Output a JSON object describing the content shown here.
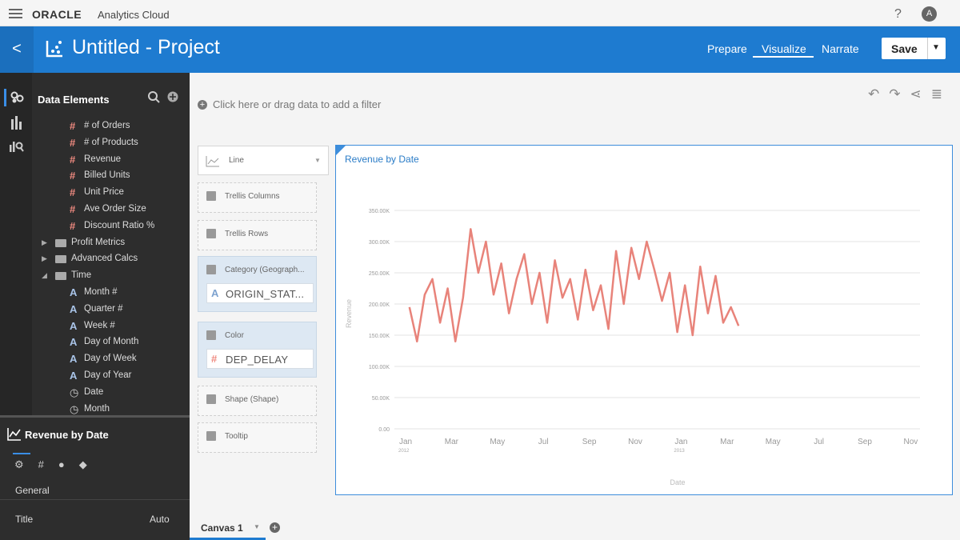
{
  "app_bar": {
    "brand": "ORACLE",
    "product": "Analytics Cloud",
    "help": "?",
    "avatar": "A"
  },
  "header": {
    "back": "<",
    "title": "Untitled - Project",
    "tabs": [
      "Prepare",
      "Visualize",
      "Narrate"
    ],
    "active_tab": 1,
    "save": "Save"
  },
  "sidebar": {
    "title": "Data Elements",
    "items": [
      {
        "label": "# of Orders",
        "kind": "measure",
        "level": 2
      },
      {
        "label": "# of Products",
        "kind": "measure",
        "level": 2
      },
      {
        "label": "Revenue",
        "kind": "measure",
        "level": 2
      },
      {
        "label": "Billed Units",
        "kind": "measure",
        "level": 2
      },
      {
        "label": "Unit Price",
        "kind": "measure",
        "level": 2
      },
      {
        "label": "Ave Order Size",
        "kind": "measure",
        "level": 2
      },
      {
        "label": "Discount Ratio %",
        "kind": "measure",
        "level": 2
      },
      {
        "label": "Profit Metrics",
        "kind": "folder",
        "level": 1,
        "expanded": false
      },
      {
        "label": "Advanced Calcs",
        "kind": "folder",
        "level": 1,
        "expanded": false
      },
      {
        "label": "Time",
        "kind": "folder",
        "level": 1,
        "expanded": true
      },
      {
        "label": "Month #",
        "kind": "attribute",
        "level": 2
      },
      {
        "label": "Quarter #",
        "kind": "attribute",
        "level": 2
      },
      {
        "label": "Week #",
        "kind": "attribute",
        "level": 2
      },
      {
        "label": "Day of Month",
        "kind": "attribute",
        "level": 2
      },
      {
        "label": "Day of Week",
        "kind": "attribute",
        "level": 2
      },
      {
        "label": "Day of Year",
        "kind": "attribute",
        "level": 2
      },
      {
        "label": "Date",
        "kind": "date",
        "level": 2
      },
      {
        "label": "Month",
        "kind": "date",
        "level": 2
      }
    ]
  },
  "properties": {
    "title": "Revenue by Date",
    "section": "General",
    "rows": [
      [
        "Title",
        "Auto"
      ]
    ]
  },
  "filter_bar": {
    "hint": "Click here or drag data to add a filter"
  },
  "grammar": {
    "viz_type": "Line",
    "slots": [
      {
        "label": "Trellis Columns"
      },
      {
        "label": "Trellis Rows"
      },
      {
        "label": "Category (Geograph...",
        "value": "ORIGIN_STAT...",
        "value_kind": "attribute"
      },
      {
        "label": "Color",
        "value": "DEP_DELAY",
        "value_kind": "measure"
      },
      {
        "label": "Shape (Shape)"
      },
      {
        "label": "Tooltip"
      }
    ]
  },
  "canvas_tabs": [
    "Canvas 1"
  ],
  "chart_data": {
    "type": "line",
    "title": "Revenue by Date",
    "x_label": "Date",
    "y_label": "Revenue",
    "x": [
      "2012-01",
      "2012-01",
      "2012-01",
      "2012-02",
      "2012-02",
      "2012-02",
      "2012-03",
      "2012-03",
      "2012-03",
      "2012-04",
      "2012-04",
      "2012-04",
      "2012-05",
      "2012-05",
      "2012-05",
      "2012-06",
      "2012-06",
      "2012-06",
      "2012-07",
      "2012-07",
      "2012-07",
      "2012-08",
      "2012-08",
      "2012-08",
      "2012-09",
      "2012-09",
      "2012-09",
      "2012-10",
      "2012-10",
      "2012-10",
      "2012-11",
      "2012-11",
      "2012-11",
      "2012-12",
      "2012-12",
      "2012-12",
      "2013-01",
      "2013-01",
      "2013-01",
      "2013-02",
      "2013-02",
      "2013-02",
      "2013-03",
      "2013-03"
    ],
    "series": [
      {
        "name": "Revenue",
        "color": "#e8837a",
        "values": [
          195000,
          140000,
          215000,
          240000,
          170000,
          225000,
          140000,
          210000,
          320000,
          250000,
          300000,
          215000,
          265000,
          185000,
          240000,
          280000,
          200000,
          250000,
          170000,
          270000,
          210000,
          240000,
          175000,
          255000,
          190000,
          230000,
          160000,
          285000,
          200000,
          290000,
          240000,
          300000,
          255000,
          205000,
          250000,
          155000,
          230000,
          150000,
          260000,
          185000,
          245000,
          170000,
          195000,
          165000
        ]
      }
    ],
    "xlim": [
      "2011-12",
      "2013-12"
    ],
    "xticks": [
      {
        "value": "2012-01",
        "label": "Jan",
        "sublabel": "2012"
      },
      {
        "value": "2012-03",
        "label": "Mar"
      },
      {
        "value": "2012-05",
        "label": "May"
      },
      {
        "value": "2012-07",
        "label": "Jul"
      },
      {
        "value": "2012-09",
        "label": "Sep"
      },
      {
        "value": "2012-11",
        "label": "Nov"
      },
      {
        "value": "2013-01",
        "label": "Jan",
        "sublabel": "2013"
      },
      {
        "value": "2013-03",
        "label": "Mar"
      },
      {
        "value": "2013-05",
        "label": "May"
      },
      {
        "value": "2013-07",
        "label": "Jul"
      },
      {
        "value": "2013-09",
        "label": "Sep"
      },
      {
        "value": "2013-11",
        "label": "Nov"
      }
    ],
    "ylim": [
      0,
      350000
    ],
    "yticks": [
      {
        "value": 0,
        "label": "0.00"
      },
      {
        "value": 50000,
        "label": "50.00K"
      },
      {
        "value": 100000,
        "label": "100.00K"
      },
      {
        "value": 150000,
        "label": "150.00K"
      },
      {
        "value": 200000,
        "label": "200.00K"
      },
      {
        "value": 250000,
        "label": "250.00K"
      },
      {
        "value": 300000,
        "label": "300.00K"
      },
      {
        "value": 350000,
        "label": "350.00K"
      }
    ],
    "grid": true
  }
}
